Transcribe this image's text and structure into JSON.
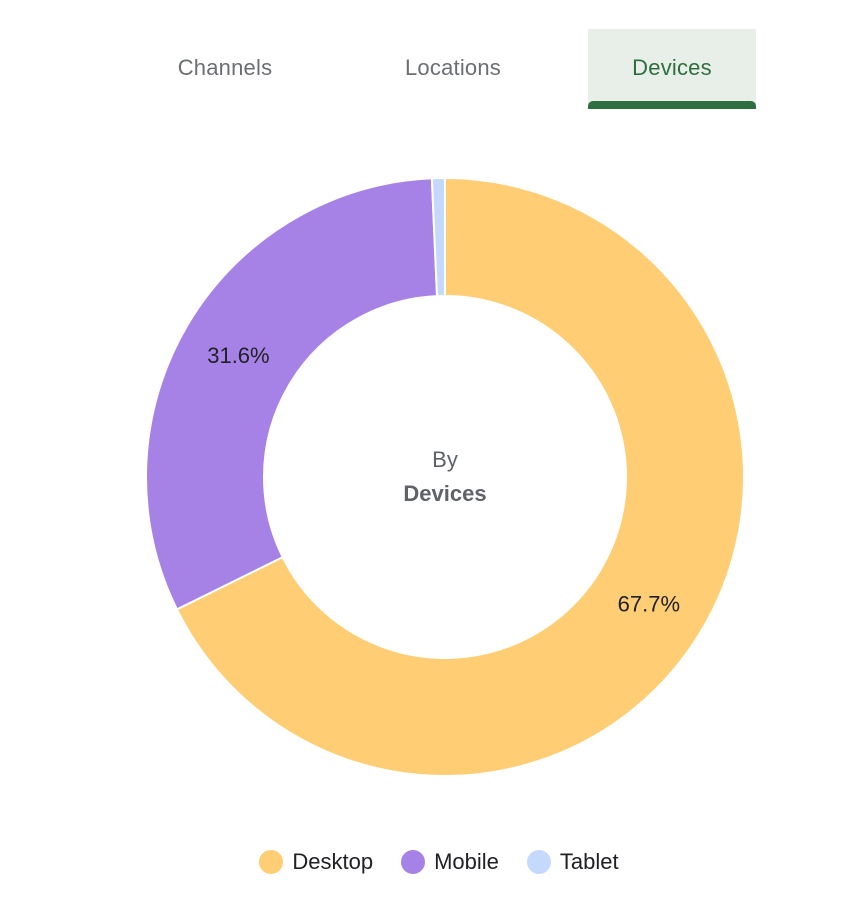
{
  "tabs": [
    {
      "label": "Channels",
      "active": false
    },
    {
      "label": "Locations",
      "active": false
    },
    {
      "label": "Devices",
      "active": true
    }
  ],
  "colors": {
    "tab_active_bg": "#e8efe9",
    "tab_active_text": "#2f6e40",
    "tab_text": "#6b6f73"
  },
  "chart_data": {
    "type": "pie",
    "center_label": {
      "line1": "By",
      "line2": "Devices"
    },
    "series": [
      {
        "name": "Desktop",
        "value": 67.7,
        "label": "67.7%",
        "color": "#fecd74"
      },
      {
        "name": "Mobile",
        "value": 31.6,
        "label": "31.6%",
        "color": "#a782e6"
      },
      {
        "name": "Tablet",
        "value": 0.7,
        "label": "",
        "color": "#c5d9fd"
      }
    ],
    "legend": {
      "placement": "bottom-center"
    }
  }
}
